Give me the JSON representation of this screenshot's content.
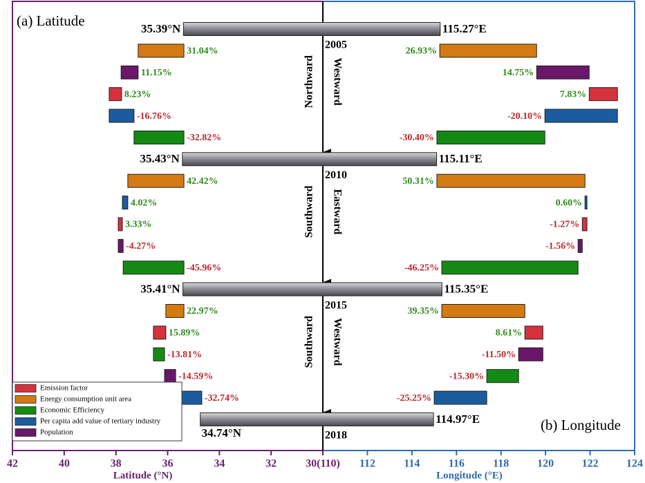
{
  "chart_data": {
    "type": "waterfall",
    "panels": [
      {
        "title": "(a) Latitude",
        "xlabel": "Latitude (°N)",
        "xlim": [
          42,
          30
        ],
        "xticks": [
          42,
          40,
          38,
          36,
          34,
          32,
          {
            "value": 30,
            "label": "30(110)"
          }
        ],
        "color": "#6b1f6f"
      },
      {
        "title": "(b) Longitude",
        "xlabel": "Longitude (°E)",
        "xlim": [
          110,
          124
        ],
        "xticks": [
          112,
          114,
          116,
          118,
          120,
          122,
          124
        ],
        "color": "#2e6aad"
      }
    ],
    "series": [
      {
        "name": "Emission factor",
        "color": "#d6323e"
      },
      {
        "name": "Energy consumption unit area",
        "color": "#d47a12"
      },
      {
        "name": "Economic Efficiency",
        "color": "#148a14"
      },
      {
        "name": "Per capita add value of tertiary industry",
        "color": "#1b5c9e"
      },
      {
        "name": "Population",
        "color": "#6a166b"
      }
    ],
    "totals": [
      {
        "year": "2005",
        "lat": 35.39,
        "lat_label": "35.39°N",
        "lon": 115.27,
        "lon_label": "115.27°E"
      },
      {
        "year": "2010",
        "lat": 35.43,
        "lat_label": "35.43°N",
        "lon": 115.11,
        "lon_label": "115.11°E"
      },
      {
        "year": "2015",
        "lat": 35.41,
        "lat_label": "35.41°N",
        "lon": 115.35,
        "lon_label": "115.35°E"
      },
      {
        "year": "2018",
        "lat": 34.74,
        "lat_label": "34.74°N",
        "lon": 114.97,
        "lon_label": "114.97°E"
      }
    ],
    "periods": [
      {
        "lat_direction": "Northward",
        "lon_direction": "Westward",
        "lat_segments": [
          {
            "series": 1,
            "start": 35.37,
            "end": 37.14,
            "label": "31.04%",
            "label_color": "#2f8a1c"
          },
          {
            "series": 4,
            "start": 37.14,
            "end": 37.8,
            "label": "11.15%",
            "label_color": "#2f8a1c"
          },
          {
            "series": 0,
            "start": 37.78,
            "end": 38.26,
            "label": "8.23%",
            "label_color": "#2f8a1c"
          },
          {
            "series": 3,
            "start": 37.3,
            "end": 38.26,
            "label": "-16.76%",
            "label_color": "#c0262d"
          },
          {
            "series": 2,
            "start": 35.37,
            "end": 37.3,
            "label": "-32.82%",
            "label_color": "#c0262d"
          }
        ],
        "lon_segments": [
          {
            "series": 1,
            "start": 115.25,
            "end": 119.6,
            "label": "26.93%",
            "label_color": "#2f8a1c"
          },
          {
            "series": 4,
            "start": 119.6,
            "end": 121.96,
            "label": "14.75%",
            "label_color": "#2f8a1c"
          },
          {
            "series": 0,
            "start": 121.96,
            "end": 123.23,
            "label": "7.83%",
            "label_color": "#2f8a1c"
          },
          {
            "series": 3,
            "start": 119.97,
            "end": 123.23,
            "label": "-20.10%",
            "label_color": "#c0262d"
          },
          {
            "series": 2,
            "start": 115.12,
            "end": 119.97,
            "label": "-30.40%",
            "label_color": "#c0262d"
          }
        ]
      },
      {
        "lat_direction": "Southward",
        "lon_direction": "Eastward",
        "lat_segments": [
          {
            "series": 1,
            "start": 35.37,
            "end": 37.54,
            "label": "42.42%",
            "label_color": "#2f8a1c"
          },
          {
            "series": 3,
            "start": 37.54,
            "end": 37.75,
            "label": "4.02%",
            "label_color": "#2f8a1c"
          },
          {
            "series": 0,
            "start": 37.75,
            "end": 37.91,
            "label": "3.33%",
            "label_color": "#2f8a1c"
          },
          {
            "series": 4,
            "start": 37.72,
            "end": 37.91,
            "label": "-4.27%",
            "label_color": "#c0262d"
          },
          {
            "series": 2,
            "start": 35.37,
            "end": 37.72,
            "label": "-45.96%",
            "label_color": "#c0262d"
          }
        ],
        "lon_segments": [
          {
            "series": 1,
            "start": 115.12,
            "end": 121.77,
            "label": "50.31%",
            "label_color": "#2f8a1c"
          },
          {
            "series": 3,
            "start": 121.77,
            "end": 121.86,
            "label": "0.60%",
            "label_color": "#2f8a1c"
          },
          {
            "series": 0,
            "start": 121.65,
            "end": 121.86,
            "label": "-1.27%",
            "label_color": "#c0262d"
          },
          {
            "series": 4,
            "start": 121.46,
            "end": 121.65,
            "label": "-1.56%",
            "label_color": "#c0262d"
          },
          {
            "series": 2,
            "start": 115.34,
            "end": 121.46,
            "label": "-46.25%",
            "label_color": "#c0262d"
          }
        ]
      },
      {
        "lat_direction": "Southward",
        "lon_direction": "Westward",
        "lat_segments": [
          {
            "series": 1,
            "start": 35.37,
            "end": 36.07,
            "label": "22.97%",
            "label_color": "#2f8a1c"
          },
          {
            "series": 0,
            "start": 36.07,
            "end": 36.55,
            "label": "15.89%",
            "label_color": "#2f8a1c"
          },
          {
            "series": 2,
            "start": 36.12,
            "end": 36.55,
            "label": "-13.81%",
            "label_color": "#c0262d"
          },
          {
            "series": 4,
            "start": 35.69,
            "end": 36.12,
            "label": "-14.59%",
            "label_color": "#c0262d"
          },
          {
            "series": 3,
            "start": 34.68,
            "end": 35.69,
            "label": "-32.74%",
            "label_color": "#c0262d"
          }
        ],
        "lon_segments": [
          {
            "series": 1,
            "start": 115.34,
            "end": 119.07,
            "label": "39.35%",
            "label_color": "#2f8a1c"
          },
          {
            "series": 0,
            "start": 119.07,
            "end": 119.88,
            "label": "8.61%",
            "label_color": "#2f8a1c"
          },
          {
            "series": 4,
            "start": 118.79,
            "end": 119.88,
            "label": "-11.50%",
            "label_color": "#c0262d"
          },
          {
            "series": 2,
            "start": 117.36,
            "end": 118.79,
            "label": "-15.30%",
            "label_color": "#c0262d"
          },
          {
            "series": 3,
            "start": 115.0,
            "end": 117.36,
            "label": "-25.25%",
            "label_color": "#c0262d"
          }
        ]
      }
    ]
  }
}
